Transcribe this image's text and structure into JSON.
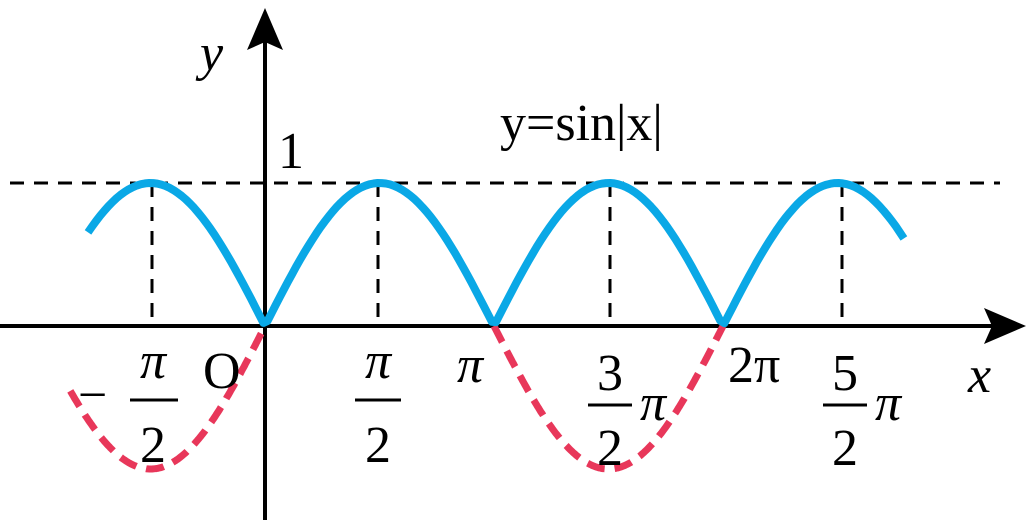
{
  "axes": {
    "x_label": "x",
    "y_label": "y",
    "origin": "O",
    "y_tick": "1"
  },
  "equation": "y=sin|x|",
  "x_ticks": [
    {
      "sign": "−",
      "num": "π",
      "den": "2"
    },
    {
      "num": "π",
      "den": "2"
    },
    {
      "label": "π"
    },
    {
      "num": "3",
      "den": "2",
      "suffix": "π"
    },
    {
      "label": "2π"
    },
    {
      "num": "5",
      "den": "2",
      "suffix": "π"
    }
  ]
}
